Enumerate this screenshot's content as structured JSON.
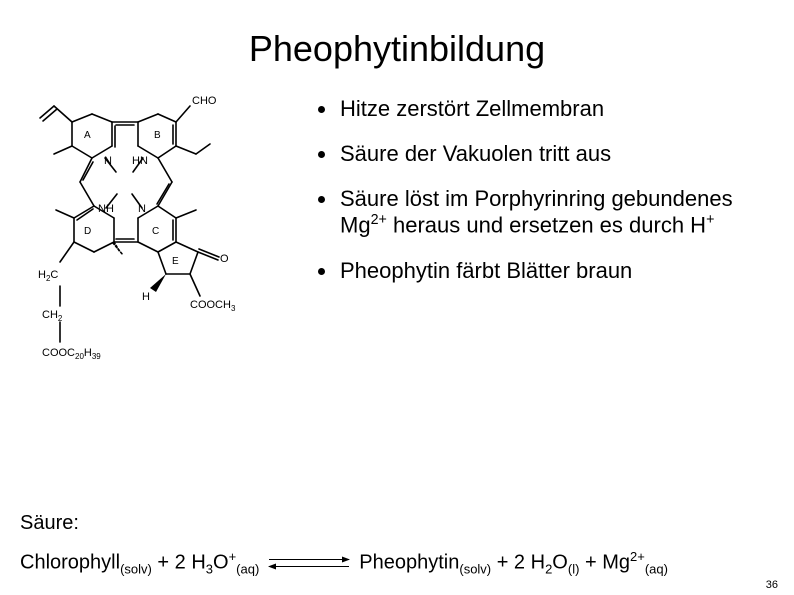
{
  "title": "Pheophytinbildung",
  "bullets": [
    {
      "html": "Hitze zerstört Zellmembran"
    },
    {
      "html": "Säure der Vakuolen tritt aus"
    },
    {
      "html": "Säure löst im Porphyrinring gebundenes Mg<sup>2+</sup> heraus und ersetzen es durch H<sup>+</sup>"
    },
    {
      "html": "Pheophytin färbt Blätter braun"
    }
  ],
  "footer": {
    "label": "Säure:",
    "left": "Chlorophyll<sub>(solv)</sub> + 2 H<sub>3</sub>O<sup>+</sup><sub>(aq)</sub>",
    "right": "Pheophytin<sub>(solv)</sub> + 2 H<sub>2</sub>O<sub>(l)</sub>  + Mg<sup>2+</sup><sub>(aq)</sub>"
  },
  "page_number": "36",
  "structure_labels": {
    "CHO": "CHO",
    "A": "A",
    "B": "B",
    "N1": "N",
    "HN1": "HN",
    "NH2": "NH",
    "N2": "N",
    "D": "D",
    "C": "C",
    "E": "E",
    "H": "H",
    "O": "O",
    "H2C1": "H",
    "two1": "2",
    "Crest1": "C",
    "CH2": "CH",
    "two2": "2",
    "COOCH3": "COOCH",
    "three": "3",
    "COOC20H39_a": "COOC",
    "c20": "20",
    "h": "H",
    "c39": "39"
  },
  "colors": {
    "fg": "#000000",
    "bg": "#ffffff"
  },
  "typography": {
    "title_fontsize": 36,
    "body_fontsize": 22,
    "eq_fontsize": 20,
    "family": "Arial"
  }
}
